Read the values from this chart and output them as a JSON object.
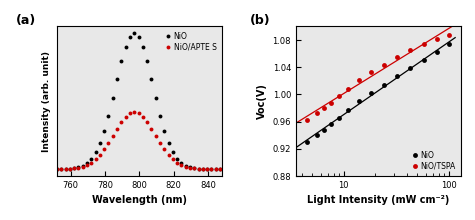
{
  "panel_a": {
    "title": "(a)",
    "xlabel": "Wavelength (nm)",
    "ylabel": "Intensity (arb. unit)",
    "xlim": [
      752,
      848
    ],
    "xticks": [
      760,
      780,
      800,
      820,
      840
    ],
    "NiO_peak": 797,
    "NiO_amp": 1.0,
    "NiO_sigma": 11.0,
    "NiO_color": "#000000",
    "APTES_peak": 797,
    "APTES_amp": 0.42,
    "APTES_sigma": 12.0,
    "APTES_color": "#cc0000",
    "legend_NiO": "NiO",
    "legend_APTES": "NiO/APTE S",
    "bg_color": "#e8e8e8"
  },
  "panel_b": {
    "title": "(b)",
    "xlabel": "Light Intensity (mW cm⁻²)",
    "ylabel": "Voc(V)",
    "xlim": [
      3.5,
      130
    ],
    "ylim": [
      0.88,
      1.1
    ],
    "yticks": [
      0.88,
      0.92,
      0.96,
      1.0,
      1.04,
      1.08
    ],
    "NiO_x": [
      4.5,
      5.5,
      6.5,
      7.5,
      9,
      11,
      14,
      18,
      24,
      32,
      43,
      58,
      78,
      100
    ],
    "NiO_y": [
      0.93,
      0.94,
      0.948,
      0.956,
      0.966,
      0.977,
      0.99,
      1.002,
      1.014,
      1.027,
      1.039,
      1.05,
      1.062,
      1.074
    ],
    "NiO_color": "#000000",
    "TSPA_x": [
      4.5,
      5.5,
      6.5,
      7.5,
      9,
      11,
      14,
      18,
      24,
      32,
      43,
      58,
      78,
      100
    ],
    "TSPA_y": [
      0.962,
      0.972,
      0.98,
      0.988,
      0.998,
      1.008,
      1.021,
      1.033,
      1.043,
      1.055,
      1.065,
      1.074,
      1.082,
      1.088
    ],
    "TSPA_color": "#cc0000",
    "legend_NiO": "NiO",
    "legend_TSPA": "NiO/TSPA",
    "bg_color": "#e8e8e8"
  },
  "background_color": "#ffffff"
}
